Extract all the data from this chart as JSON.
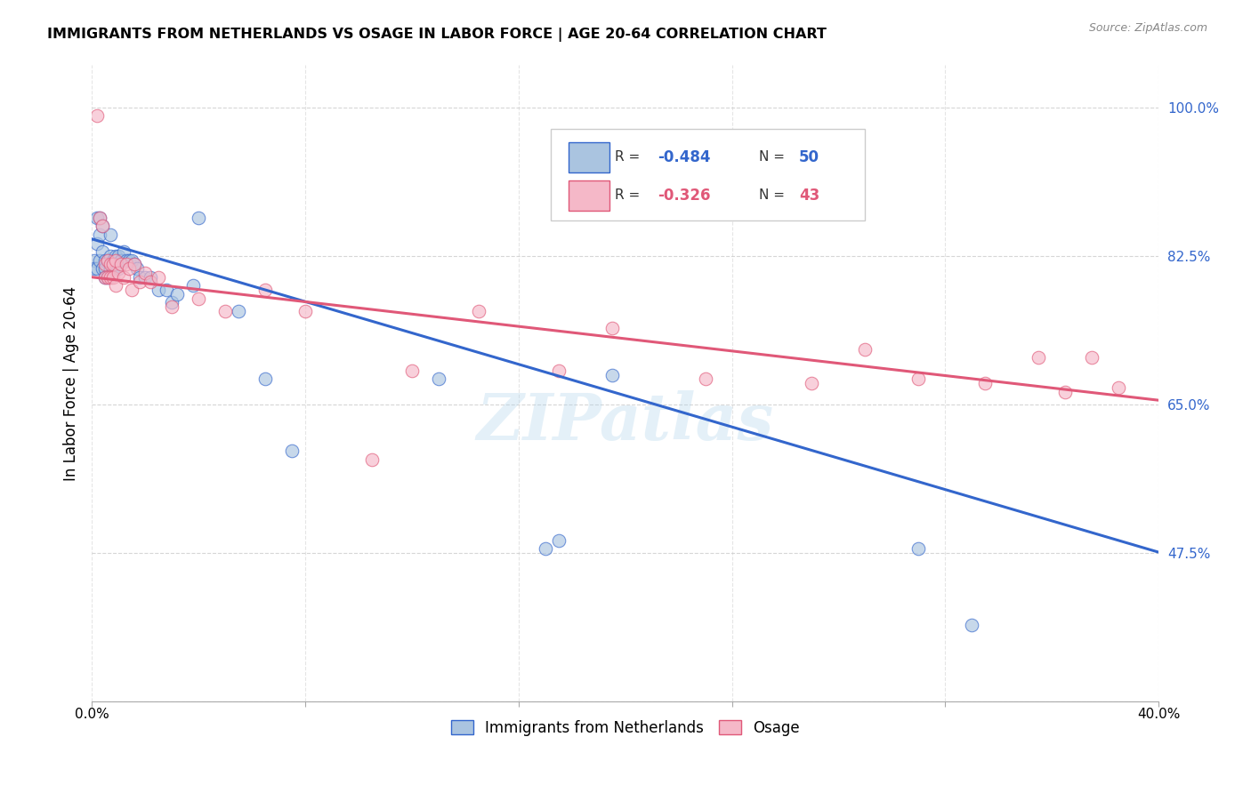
{
  "title": "IMMIGRANTS FROM NETHERLANDS VS OSAGE IN LABOR FORCE | AGE 20-64 CORRELATION CHART",
  "source": "Source: ZipAtlas.com",
  "ylabel": "In Labor Force | Age 20-64",
  "xlim": [
    0.0,
    0.4
  ],
  "ylim": [
    0.3,
    1.05
  ],
  "blue_color": "#aac4e0",
  "blue_line_color": "#3366cc",
  "pink_color": "#f5b8c8",
  "pink_line_color": "#e05878",
  "blue_line_x0": 0.0,
  "blue_line_y0": 0.845,
  "blue_line_x1": 0.4,
  "blue_line_y1": 0.476,
  "pink_line_x0": 0.0,
  "pink_line_y0": 0.8,
  "pink_line_x1": 0.4,
  "pink_line_y1": 0.655,
  "blue_x": [
    0.001,
    0.001,
    0.002,
    0.002,
    0.002,
    0.003,
    0.003,
    0.003,
    0.004,
    0.004,
    0.004,
    0.005,
    0.005,
    0.005,
    0.006,
    0.006,
    0.007,
    0.007,
    0.007,
    0.008,
    0.008,
    0.009,
    0.009,
    0.01,
    0.01,
    0.011,
    0.012,
    0.013,
    0.014,
    0.015,
    0.016,
    0.017,
    0.018,
    0.02,
    0.022,
    0.025,
    0.028,
    0.03,
    0.032,
    0.038,
    0.04,
    0.055,
    0.065,
    0.075,
    0.13,
    0.17,
    0.175,
    0.195,
    0.31,
    0.33
  ],
  "blue_y": [
    0.82,
    0.81,
    0.87,
    0.84,
    0.81,
    0.87,
    0.85,
    0.82,
    0.86,
    0.83,
    0.81,
    0.82,
    0.81,
    0.8,
    0.82,
    0.8,
    0.85,
    0.825,
    0.81,
    0.82,
    0.81,
    0.825,
    0.815,
    0.825,
    0.81,
    0.82,
    0.83,
    0.82,
    0.82,
    0.82,
    0.815,
    0.81,
    0.8,
    0.8,
    0.8,
    0.785,
    0.785,
    0.77,
    0.78,
    0.79,
    0.87,
    0.76,
    0.68,
    0.595,
    0.68,
    0.48,
    0.49,
    0.685,
    0.48,
    0.39
  ],
  "pink_x": [
    0.002,
    0.003,
    0.004,
    0.005,
    0.005,
    0.006,
    0.006,
    0.007,
    0.007,
    0.008,
    0.008,
    0.009,
    0.009,
    0.01,
    0.011,
    0.012,
    0.013,
    0.014,
    0.015,
    0.016,
    0.018,
    0.02,
    0.022,
    0.025,
    0.03,
    0.04,
    0.05,
    0.065,
    0.08,
    0.105,
    0.12,
    0.145,
    0.175,
    0.195,
    0.23,
    0.27,
    0.29,
    0.31,
    0.335,
    0.355,
    0.365,
    0.375,
    0.385
  ],
  "pink_y": [
    0.99,
    0.87,
    0.86,
    0.815,
    0.8,
    0.82,
    0.8,
    0.815,
    0.8,
    0.815,
    0.8,
    0.82,
    0.79,
    0.805,
    0.815,
    0.8,
    0.815,
    0.81,
    0.785,
    0.815,
    0.795,
    0.805,
    0.795,
    0.8,
    0.765,
    0.775,
    0.76,
    0.785,
    0.76,
    0.585,
    0.69,
    0.76,
    0.69,
    0.74,
    0.68,
    0.675,
    0.715,
    0.68,
    0.675,
    0.705,
    0.665,
    0.705,
    0.67
  ],
  "ytick_positions": [
    0.3,
    0.475,
    0.65,
    0.825,
    1.0
  ],
  "ytick_labels": [
    "",
    "47.5%",
    "65.0%",
    "82.5%",
    "100.0%"
  ],
  "watermark": "ZIPatlas"
}
